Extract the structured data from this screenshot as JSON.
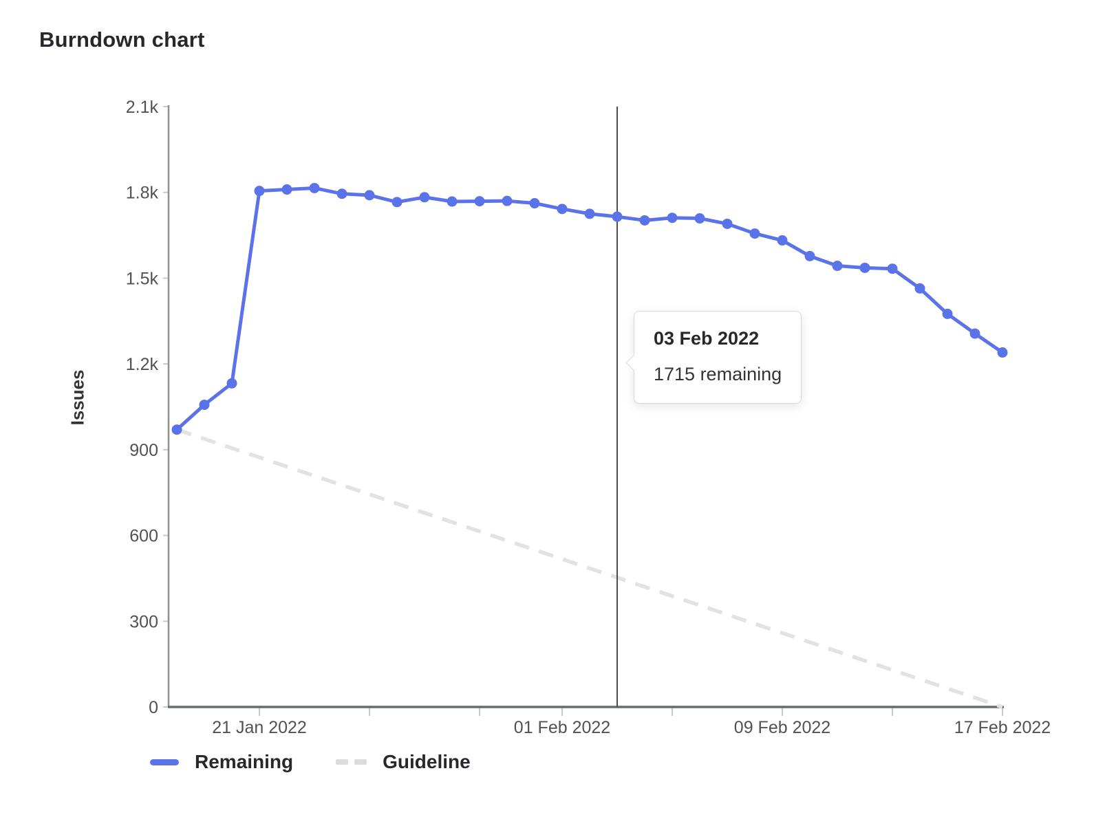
{
  "page": {
    "title": "Burndown chart"
  },
  "tooltip": {
    "title": "03 Feb 2022",
    "body": "1715 remaining"
  },
  "colors": {
    "remaining": "#5b73e8",
    "guideline": "#e2e2e2",
    "current_day_line": "#4d4d4d",
    "axis_x": "#666c76",
    "axis_y": "#8f9096",
    "tick_text": "#525252"
  },
  "chart_data": {
    "type": "line",
    "title": "Burndown chart",
    "xlabel": "",
    "ylabel": "Issues",
    "ylim": [
      0,
      2100
    ],
    "grid": false,
    "legend_position": "bottom-left",
    "y_ticks": [
      {
        "value": 0,
        "label": "0"
      },
      {
        "value": 300,
        "label": "300"
      },
      {
        "value": 600,
        "label": "600"
      },
      {
        "value": 900,
        "label": "900"
      },
      {
        "value": 1200,
        "label": "1.2k"
      },
      {
        "value": 1500,
        "label": "1.5k"
      },
      {
        "value": 1800,
        "label": "1.8k"
      },
      {
        "value": 2100,
        "label": "2.1k"
      }
    ],
    "x": [
      "18 Jan 2022",
      "19 Jan 2022",
      "20 Jan 2022",
      "21 Jan 2022",
      "22 Jan 2022",
      "23 Jan 2022",
      "24 Jan 2022",
      "25 Jan 2022",
      "26 Jan 2022",
      "27 Jan 2022",
      "28 Jan 2022",
      "29 Jan 2022",
      "30 Jan 2022",
      "31 Jan 2022",
      "01 Feb 2022",
      "02 Feb 2022",
      "03 Feb 2022",
      "04 Feb 2022",
      "05 Feb 2022",
      "06 Feb 2022",
      "07 Feb 2022",
      "08 Feb 2022",
      "09 Feb 2022",
      "10 Feb 2022",
      "11 Feb 2022",
      "12 Feb 2022",
      "13 Feb 2022",
      "14 Feb 2022",
      "15 Feb 2022",
      "16 Feb 2022",
      "17 Feb 2022"
    ],
    "x_ticks": [
      {
        "day": 3,
        "label": "21 Jan 2022"
      },
      {
        "day": 7,
        "label": ""
      },
      {
        "day": 11,
        "label": ""
      },
      {
        "day": 14,
        "label": "01 Feb 2022"
      },
      {
        "day": 18,
        "label": ""
      },
      {
        "day": 22,
        "label": "09 Feb 2022"
      },
      {
        "day": 26,
        "label": ""
      },
      {
        "day": 30,
        "label": "17 Feb 2022"
      }
    ],
    "series": [
      {
        "name": "Remaining",
        "style": "solid",
        "symbols": true,
        "color": "#5b73e8",
        "values": [
          970,
          1057,
          1132,
          1805,
          1810,
          1815,
          1795,
          1790,
          1766,
          1783,
          1768,
          1769,
          1770,
          1762,
          1742,
          1725,
          1715,
          1702,
          1711,
          1709,
          1690,
          1656,
          1632,
          1577,
          1543,
          1536,
          1533,
          1464,
          1375,
          1306,
          1240
        ]
      },
      {
        "name": "Guideline",
        "style": "dashed",
        "symbols": false,
        "color": "#e2e2e2",
        "x_days": [
          0,
          30
        ],
        "values": [
          970,
          0
        ]
      }
    ],
    "current_day": {
      "date": "03 Feb 2022",
      "day": 16,
      "remaining": 1715
    }
  }
}
